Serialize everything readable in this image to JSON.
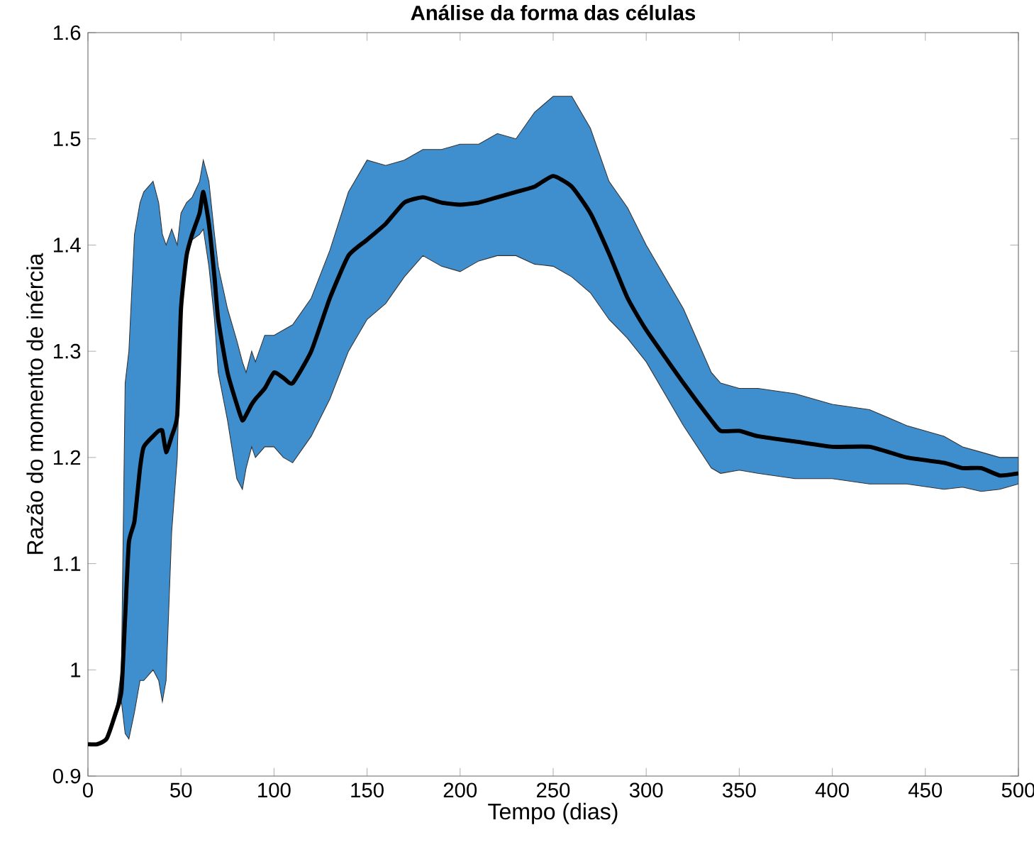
{
  "chart_data": {
    "type": "line",
    "title": "Análise da forma das células",
    "xlabel": "Tempo (dias)",
    "ylabel": "Razão do momento de inércia",
    "xlim": [
      0,
      500
    ],
    "ylim": [
      0.9,
      1.6
    ],
    "xticks": [
      0,
      50,
      100,
      150,
      200,
      250,
      300,
      350,
      400,
      450,
      500
    ],
    "yticks": [
      0.9,
      1,
      1.1,
      1.2,
      1.3,
      1.4,
      1.5,
      1.6
    ],
    "grid": false,
    "line_style": "solid",
    "marker": "none",
    "series": [
      {
        "color": "#000000",
        "x": [
          0,
          5,
          10,
          15,
          18,
          20,
          22,
          25,
          28,
          30,
          35,
          38,
          40,
          42,
          45,
          48,
          50,
          53,
          56,
          60,
          62,
          65,
          68,
          70,
          75,
          80,
          83,
          85,
          88,
          90,
          95,
          100,
          105,
          110,
          120,
          130,
          140,
          150,
          160,
          170,
          180,
          190,
          200,
          210,
          220,
          230,
          240,
          250,
          260,
          270,
          280,
          290,
          300,
          320,
          335,
          340,
          350,
          360,
          380,
          400,
          420,
          440,
          460,
          470,
          480,
          490,
          500
        ],
        "values": [
          0.93,
          0.93,
          0.935,
          0.96,
          0.98,
          1.05,
          1.12,
          1.14,
          1.19,
          1.21,
          1.22,
          1.225,
          1.225,
          1.205,
          1.22,
          1.24,
          1.34,
          1.39,
          1.41,
          1.43,
          1.45,
          1.42,
          1.37,
          1.33,
          1.28,
          1.25,
          1.235,
          1.24,
          1.25,
          1.255,
          1.265,
          1.28,
          1.275,
          1.27,
          1.3,
          1.35,
          1.39,
          1.405,
          1.42,
          1.44,
          1.445,
          1.44,
          1.438,
          1.44,
          1.445,
          1.45,
          1.455,
          1.465,
          1.455,
          1.43,
          1.392,
          1.35,
          1.32,
          1.27,
          1.235,
          1.225,
          1.225,
          1.22,
          1.215,
          1.21,
          1.21,
          1.2,
          1.195,
          1.19,
          1.19,
          1.183,
          1.185
        ],
        "upper": [
          0.93,
          0.93,
          0.935,
          0.96,
          1.0,
          1.27,
          1.3,
          1.41,
          1.44,
          1.45,
          1.46,
          1.44,
          1.41,
          1.4,
          1.415,
          1.4,
          1.43,
          1.44,
          1.445,
          1.46,
          1.48,
          1.46,
          1.41,
          1.38,
          1.34,
          1.31,
          1.29,
          1.28,
          1.3,
          1.29,
          1.315,
          1.315,
          1.32,
          1.325,
          1.35,
          1.395,
          1.45,
          1.48,
          1.475,
          1.48,
          1.49,
          1.49,
          1.495,
          1.495,
          1.505,
          1.5,
          1.525,
          1.54,
          1.54,
          1.51,
          1.46,
          1.435,
          1.4,
          1.34,
          1.28,
          1.27,
          1.265,
          1.265,
          1.26,
          1.25,
          1.245,
          1.23,
          1.22,
          1.21,
          1.205,
          1.2,
          1.2
        ],
        "lower": [
          0.93,
          0.93,
          0.935,
          0.955,
          0.97,
          0.94,
          0.935,
          0.96,
          0.99,
          0.99,
          1.0,
          0.99,
          0.97,
          0.99,
          1.13,
          1.2,
          1.34,
          1.39,
          1.405,
          1.41,
          1.415,
          1.38,
          1.33,
          1.28,
          1.235,
          1.18,
          1.17,
          1.19,
          1.21,
          1.2,
          1.21,
          1.21,
          1.2,
          1.195,
          1.22,
          1.255,
          1.3,
          1.33,
          1.345,
          1.37,
          1.39,
          1.38,
          1.375,
          1.385,
          1.39,
          1.39,
          1.382,
          1.38,
          1.37,
          1.355,
          1.33,
          1.312,
          1.29,
          1.23,
          1.19,
          1.185,
          1.188,
          1.185,
          1.18,
          1.18,
          1.175,
          1.175,
          1.17,
          1.172,
          1.168,
          1.17,
          1.175
        ]
      }
    ]
  }
}
